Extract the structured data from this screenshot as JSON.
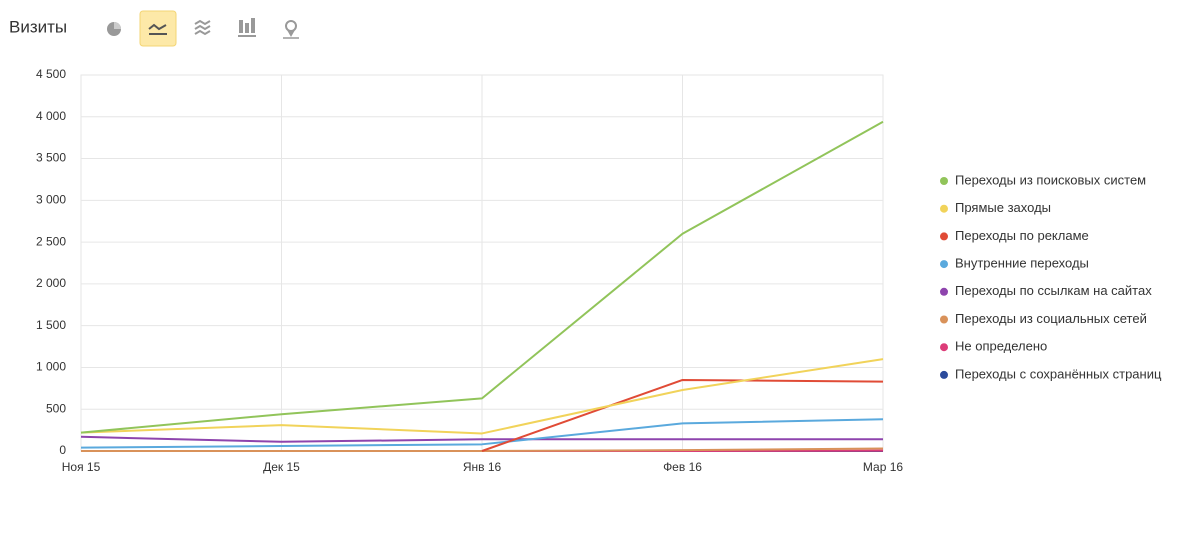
{
  "chart_data": {
    "type": "line",
    "title": "Визиты",
    "categories": [
      "Ноя 15",
      "Дек 15",
      "Янв 16",
      "Фев 16",
      "Мар 16"
    ],
    "ylim": [
      0,
      4500
    ],
    "yticks": [
      0,
      {
        "value": 500,
        "label": "500"
      },
      {
        "value": 1000,
        "label": "1 000"
      },
      {
        "value": 1500,
        "label": "1 500"
      },
      {
        "value": 2000,
        "label": "2 000"
      },
      {
        "value": 2500,
        "label": "2 500"
      },
      {
        "value": 3000,
        "label": "3 000"
      },
      {
        "value": 3500,
        "label": "3 500"
      },
      {
        "value": 4000,
        "label": "4 000"
      },
      {
        "value": 4500,
        "label": "4 500"
      }
    ],
    "grid": true,
    "legend": "right",
    "series": [
      {
        "name": "Переходы из поисковых систем",
        "color": "#91c45a",
        "values": [
          220,
          440,
          630,
          2600,
          3940
        ]
      },
      {
        "name": "Прямые заходы",
        "color": "#f1d35a",
        "values": [
          220,
          310,
          210,
          730,
          1100
        ]
      },
      {
        "name": "Переходы по рекламе",
        "color": "#e04b36",
        "values": [
          null,
          null,
          0,
          850,
          830
        ]
      },
      {
        "name": "Внутренние переходы",
        "color": "#5aa9dd",
        "values": [
          40,
          60,
          80,
          330,
          380
        ]
      },
      {
        "name": "Переходы по ссылкам на сайтах",
        "color": "#8e44ad",
        "values": [
          170,
          110,
          140,
          140,
          140
        ]
      },
      {
        "name": "Переходы из социальных сетей",
        "color": "#d9925a",
        "values": [
          0,
          0,
          0,
          10,
          30
        ]
      },
      {
        "name": "Не определено",
        "color": "#dc3c78",
        "values": [
          0,
          0,
          0,
          0,
          5
        ]
      },
      {
        "name": "Переходы с сохранённых страниц",
        "color": "#2c4b9c",
        "values": [
          0,
          0,
          0,
          0,
          0
        ]
      }
    ]
  }
}
